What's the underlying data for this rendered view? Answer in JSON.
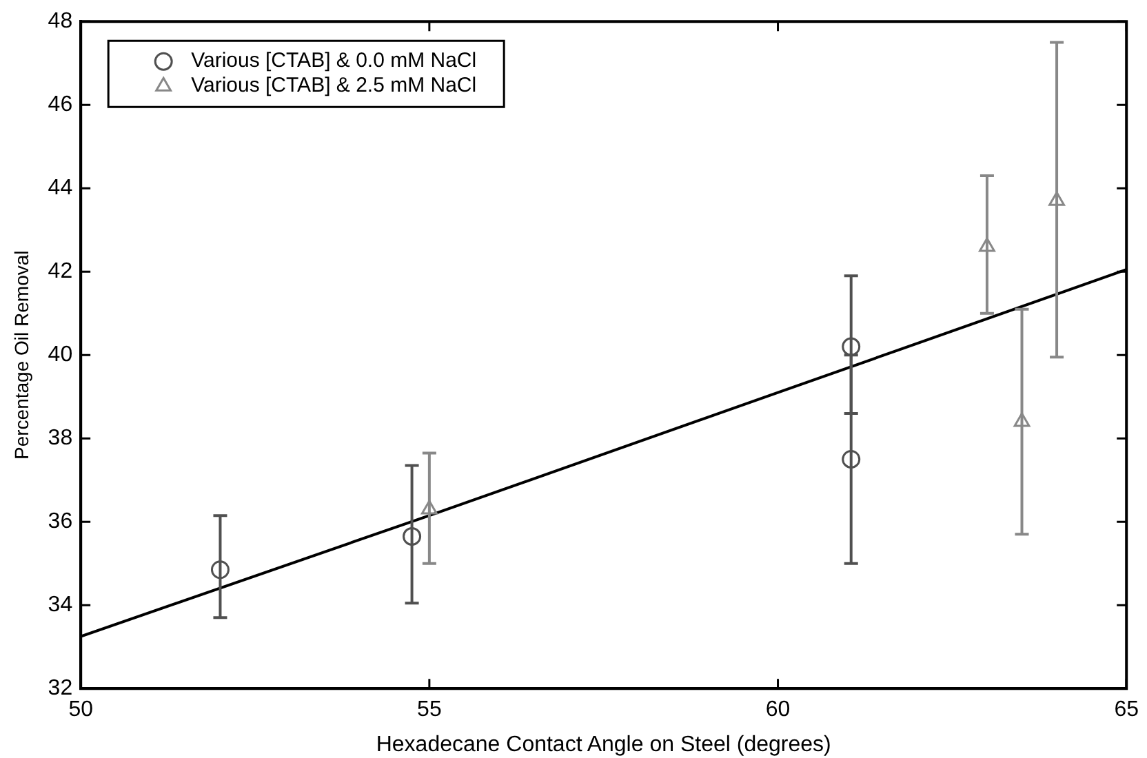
{
  "chart_data": {
    "type": "scatter",
    "xlabel": "Hexadecane Contact Angle on Steel (degrees)",
    "ylabel": "Percentage Oil Removal",
    "xlim": [
      50,
      65
    ],
    "xticks": [
      50,
      55,
      60,
      65
    ],
    "ylim": [
      32,
      48
    ],
    "yticks": [
      32,
      34,
      36,
      38,
      40,
      42,
      44,
      46,
      48
    ],
    "grid": false,
    "legend": "top left",
    "series": [
      {
        "name": "Various [CTAB] & 0.0 mM NaCl",
        "color": "#505050",
        "marker": "circle",
        "x": [
          52.0,
          54.75,
          61.05,
          61.05
        ],
        "values": [
          34.85,
          35.65,
          40.2,
          37.5
        ],
        "errors": [
          [
            33.7,
            36.15
          ],
          [
            34.05,
            37.35
          ],
          [
            38.6,
            41.9
          ],
          [
            35.0,
            40.0
          ]
        ]
      },
      {
        "name": "Various [CTAB] & 2.5 mM NaCl",
        "color": "#888888",
        "marker": "triangle",
        "x": [
          55.0,
          63.0,
          63.5,
          64.0
        ],
        "values": [
          36.3,
          42.6,
          38.4,
          43.7
        ],
        "errors": [
          [
            35.0,
            37.65
          ],
          [
            41.0,
            44.3
          ],
          [
            35.7,
            41.1
          ],
          [
            39.95,
            47.5
          ]
        ]
      },
      {
        "type": "line",
        "color": "#000000",
        "marker": "none",
        "line_style": "solid",
        "x": [
          50,
          55,
          60,
          65
        ],
        "values": [
          33.25,
          36.15,
          39.1,
          42.05
        ]
      }
    ]
  }
}
